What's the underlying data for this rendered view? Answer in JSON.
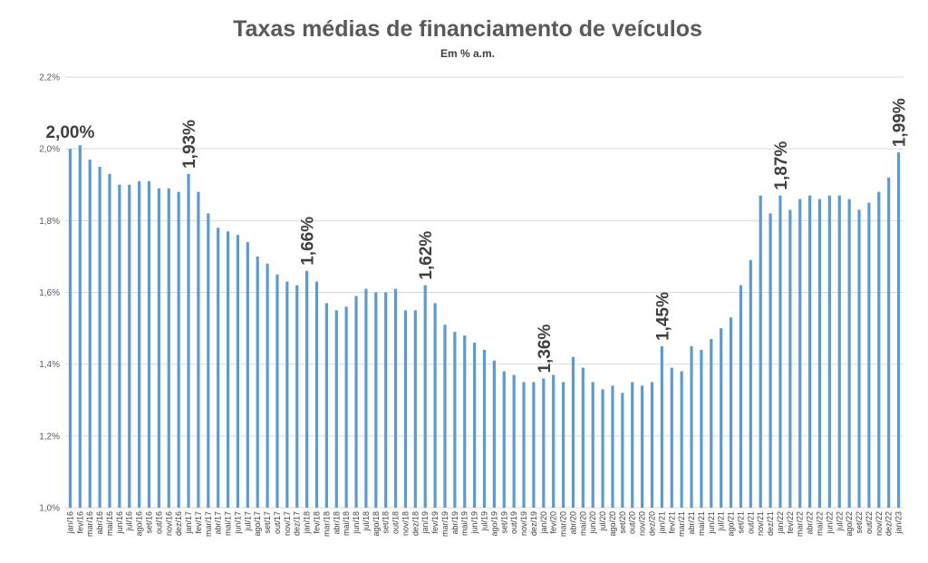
{
  "chart_data": {
    "type": "bar",
    "title": "Taxas médias de financiamento de veículos",
    "subtitle": "Em % a.m.",
    "xlabel": "",
    "ylabel": "",
    "ylim": [
      1.0,
      2.2
    ],
    "yticks": [
      {
        "value": 1.0,
        "label": "1,0%"
      },
      {
        "value": 1.2,
        "label": "1,2%"
      },
      {
        "value": 1.4,
        "label": "1,4%"
      },
      {
        "value": 1.6,
        "label": "1,6%"
      },
      {
        "value": 1.8,
        "label": "1,8%"
      },
      {
        "value": 2.0,
        "label": "2,0%"
      },
      {
        "value": 2.2,
        "label": "2,2%"
      }
    ],
    "grid": true,
    "legend": "none",
    "bar_color": "#5b9bd5",
    "categories": [
      "jan/16",
      "fev/16",
      "mar/16",
      "abr/16",
      "mai/16",
      "jun/16",
      "jul/16",
      "ago/16",
      "set/16",
      "out/16",
      "nov/16",
      "dez/16",
      "jan/17",
      "fev/17",
      "mar/17",
      "abr/17",
      "mai/17",
      "jun/17",
      "jul/17",
      "ago/17",
      "set/17",
      "out/17",
      "nov/17",
      "dez/17",
      "jan/18",
      "fev/18",
      "mar/18",
      "abr/18",
      "mai/18",
      "jun/18",
      "jul/18",
      "ago/18",
      "set/18",
      "out/18",
      "nov/18",
      "dez/18",
      "jan/19",
      "fev/19",
      "mar/19",
      "abr/19",
      "mai/19",
      "jun/19",
      "jul/19",
      "ago/19",
      "set/19",
      "out/19",
      "nov/19",
      "dez/19",
      "jan/20",
      "fev/20",
      "mar/20",
      "abr/20",
      "mai/20",
      "jun/20",
      "jul/20",
      "ago/20",
      "set/20",
      "out/20",
      "nov/20",
      "dez/20",
      "jan/21",
      "fev/21",
      "mar/21",
      "abr/21",
      "mai/21",
      "jun/21",
      "jul/21",
      "ago/21",
      "set/21",
      "out/21",
      "nov/21",
      "dez/21",
      "jan/22",
      "fev/22",
      "mar/22",
      "abr/22",
      "mai/22",
      "jun/22",
      "jul/22",
      "ago/22",
      "set/22",
      "out/22",
      "nov/22",
      "dez/22",
      "jan/23"
    ],
    "values": [
      2.0,
      2.01,
      1.97,
      1.95,
      1.93,
      1.9,
      1.9,
      1.91,
      1.91,
      1.89,
      1.89,
      1.88,
      1.93,
      1.88,
      1.82,
      1.78,
      1.77,
      1.76,
      1.74,
      1.7,
      1.68,
      1.65,
      1.63,
      1.62,
      1.66,
      1.63,
      1.57,
      1.55,
      1.56,
      1.59,
      1.61,
      1.6,
      1.6,
      1.61,
      1.55,
      1.55,
      1.62,
      1.57,
      1.51,
      1.49,
      1.48,
      1.46,
      1.44,
      1.41,
      1.38,
      1.37,
      1.35,
      1.35,
      1.36,
      1.37,
      1.35,
      1.42,
      1.39,
      1.35,
      1.33,
      1.34,
      1.32,
      1.35,
      1.34,
      1.35,
      1.45,
      1.39,
      1.38,
      1.45,
      1.44,
      1.47,
      1.5,
      1.53,
      1.62,
      1.69,
      1.87,
      1.82,
      1.87,
      1.83,
      1.86,
      1.87,
      1.86,
      1.87,
      1.87,
      1.86,
      1.83,
      1.85,
      1.88,
      1.92,
      1.99
    ],
    "annotations": [
      {
        "index": 0,
        "label": "2,00%",
        "rotated": false
      },
      {
        "index": 12,
        "label": "1,93%",
        "rotated": true
      },
      {
        "index": 24,
        "label": "1,66%",
        "rotated": true
      },
      {
        "index": 36,
        "label": "1,62%",
        "rotated": true
      },
      {
        "index": 48,
        "label": "1,36%",
        "rotated": true
      },
      {
        "index": 60,
        "label": "1,45%",
        "rotated": true
      },
      {
        "index": 72,
        "label": "1,87%",
        "rotated": true
      },
      {
        "index": 84,
        "label": "1,99%",
        "rotated": true
      }
    ]
  }
}
